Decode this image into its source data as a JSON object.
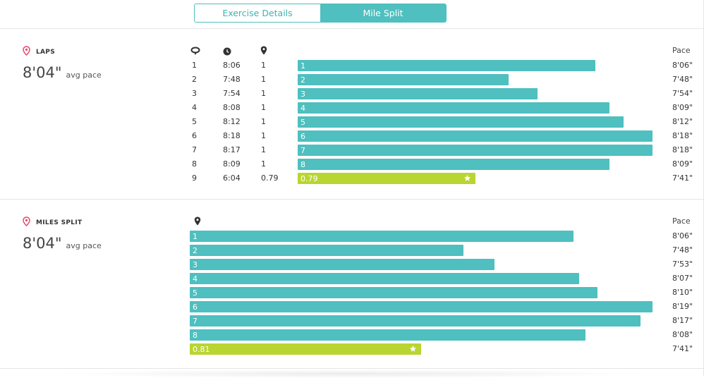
{
  "tabs": [
    {
      "label": "Exercise Details",
      "active": false
    },
    {
      "label": "Mile Split",
      "active": true
    }
  ],
  "colors": {
    "teal": "#4fbfbf",
    "green": "#b9d531",
    "accent_pin": "#e8476b"
  },
  "laps": {
    "title": "LAPS",
    "avg_value": "8'04\"",
    "avg_label": "avg pace",
    "pace_header": "Pace",
    "header_icons": [
      "lap-icon",
      "clock-icon",
      "location-pin-icon"
    ],
    "rows": [
      {
        "lap": "1",
        "time": "8:06",
        "dist": "1",
        "bar_label": "1",
        "pace": "8'06\"",
        "pace_sec": 486,
        "highlight": false
      },
      {
        "lap": "2",
        "time": "7:48",
        "dist": "1",
        "bar_label": "2",
        "pace": "7'48\"",
        "pace_sec": 468,
        "highlight": false
      },
      {
        "lap": "3",
        "time": "7:54",
        "dist": "1",
        "bar_label": "3",
        "pace": "7'54\"",
        "pace_sec": 474,
        "highlight": false
      },
      {
        "lap": "4",
        "time": "8:08",
        "dist": "1",
        "bar_label": "4",
        "pace": "8'09\"",
        "pace_sec": 489,
        "highlight": false
      },
      {
        "lap": "5",
        "time": "8:12",
        "dist": "1",
        "bar_label": "5",
        "pace": "8'12\"",
        "pace_sec": 492,
        "highlight": false
      },
      {
        "lap": "6",
        "time": "8:18",
        "dist": "1",
        "bar_label": "6",
        "pace": "8'18\"",
        "pace_sec": 498,
        "highlight": false
      },
      {
        "lap": "7",
        "time": "8:17",
        "dist": "1",
        "bar_label": "7",
        "pace": "8'18\"",
        "pace_sec": 498,
        "highlight": false
      },
      {
        "lap": "8",
        "time": "8:09",
        "dist": "1",
        "bar_label": "8",
        "pace": "8'09\"",
        "pace_sec": 489,
        "highlight": false
      },
      {
        "lap": "9",
        "time": "6:04",
        "dist": "0.79",
        "bar_label": "0.79",
        "pace": "7'41\"",
        "pace_sec": 461,
        "highlight": true
      }
    ]
  },
  "miles": {
    "title": "MILES SPLIT",
    "avg_value": "8'04\"",
    "avg_label": "avg pace",
    "pace_header": "Pace",
    "header_icons": [
      "location-pin-icon"
    ],
    "rows": [
      {
        "bar_label": "1",
        "pace": "8'06\"",
        "pace_sec": 486,
        "highlight": false
      },
      {
        "bar_label": "2",
        "pace": "7'48\"",
        "pace_sec": 468,
        "highlight": false
      },
      {
        "bar_label": "3",
        "pace": "7'53\"",
        "pace_sec": 473,
        "highlight": false
      },
      {
        "bar_label": "4",
        "pace": "8'07\"",
        "pace_sec": 487,
        "highlight": false
      },
      {
        "bar_label": "5",
        "pace": "8'10\"",
        "pace_sec": 490,
        "highlight": false
      },
      {
        "bar_label": "6",
        "pace": "8'19\"",
        "pace_sec": 499,
        "highlight": false
      },
      {
        "bar_label": "7",
        "pace": "8'17\"",
        "pace_sec": 497,
        "highlight": false
      },
      {
        "bar_label": "8",
        "pace": "8'08\"",
        "pace_sec": 488,
        "highlight": false
      },
      {
        "bar_label": "0.81",
        "pace": "7'41\"",
        "pace_sec": 461,
        "highlight": true
      }
    ]
  }
}
